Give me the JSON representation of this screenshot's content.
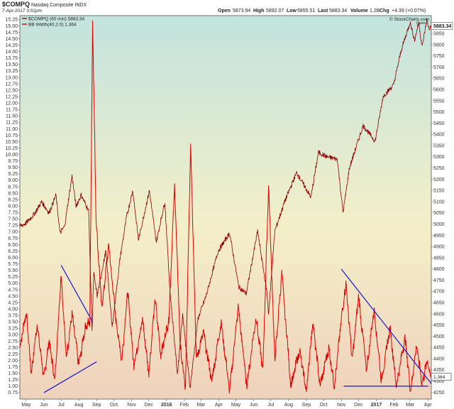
{
  "chart_data": {
    "type": "line",
    "header": {
      "symbol": "$COMPQ",
      "name": "Nasdaq Composite INDX",
      "date": "7-Apr-2017 3:02pm",
      "open_label": "Open",
      "open": "5873.94",
      "high_label": "High",
      "high": "5892.07",
      "low_label": "Low",
      "low": "5855.51",
      "last_label": "Last",
      "last": "5883.34",
      "volume_label": "Volume",
      "volume": "1.2B",
      "chg_label": "Chg",
      "chg": "+4.39 (+0.07%)",
      "watermark": "© StockCharts.com",
      "legend_price": "$COMPQ (60 min) 5883.34",
      "legend_bbw": "BB Width(40,2.0) 1.364",
      "price_tag": "5883.34",
      "bbw_tag": "1.364",
      "open_tag": "Open"
    },
    "colors": {
      "price": "#8b0000",
      "bbw": "#dd0000",
      "trendline": "#1515d0",
      "bg_top": "#c2e3de",
      "bg_mid": "#f4efc8",
      "bg_bottom": "#efd2bc"
    },
    "x_range": [
      "2015-04-20",
      "2017-04-07"
    ],
    "x_ticks": [
      {
        "label": "May",
        "date": "2015-05-01",
        "bold": false
      },
      {
        "label": "Jun",
        "date": "2015-06-01",
        "bold": false
      },
      {
        "label": "Jul",
        "date": "2015-07-01",
        "bold": false
      },
      {
        "label": "Aug",
        "date": "2015-08-01",
        "bold": false
      },
      {
        "label": "Sep",
        "date": "2015-09-01",
        "bold": false
      },
      {
        "label": "Oct",
        "date": "2015-10-01",
        "bold": false
      },
      {
        "label": "Nov",
        "date": "2015-11-01",
        "bold": false
      },
      {
        "label": "Dec",
        "date": "2015-12-01",
        "bold": false
      },
      {
        "label": "2016",
        "date": "2016-01-01",
        "bold": true
      },
      {
        "label": "Feb",
        "date": "2016-02-01",
        "bold": false
      },
      {
        "label": "Mar",
        "date": "2016-03-01",
        "bold": false
      },
      {
        "label": "Apr",
        "date": "2016-04-01",
        "bold": false
      },
      {
        "label": "May",
        "date": "2016-05-01",
        "bold": false
      },
      {
        "label": "Jun",
        "date": "2016-06-01",
        "bold": false
      },
      {
        "label": "Jul",
        "date": "2016-07-01",
        "bold": false
      },
      {
        "label": "Aug",
        "date": "2016-08-01",
        "bold": false
      },
      {
        "label": "Sep",
        "date": "2016-09-01",
        "bold": false
      },
      {
        "label": "Oct",
        "date": "2016-10-01",
        "bold": false
      },
      {
        "label": "Nov",
        "date": "2016-11-01",
        "bold": false
      },
      {
        "label": "Dec",
        "date": "2016-12-01",
        "bold": false
      },
      {
        "label": "2017",
        "date": "2017-01-01",
        "bold": true
      },
      {
        "label": "Feb",
        "date": "2017-02-01",
        "bold": false
      },
      {
        "label": "Mar",
        "date": "2017-03-01",
        "bold": false
      },
      {
        "label": "Apr",
        "date": "2017-04-01",
        "bold": false
      }
    ],
    "y_left": {
      "label": "",
      "range": [
        0.5,
        15.4
      ],
      "ticks": [
        "0.75",
        "1.00",
        "1.25",
        "1.50",
        "1.75",
        "2.00",
        "2.25",
        "2.50",
        "2.75",
        "3.00",
        "3.25",
        "3.50",
        "3.75",
        "4.00",
        "4.25",
        "4.50",
        "4.75",
        "5.00",
        "5.25",
        "5.50",
        "5.75",
        "6.00",
        "6.25",
        "6.50",
        "6.75",
        "7.00",
        "7.25",
        "7.50",
        "7.75",
        "8.00",
        "8.25",
        "8.50",
        "8.75",
        "9.00",
        "9.25",
        "9.50",
        "9.75",
        "10.00",
        "10.25",
        "10.50",
        "10.75",
        "11.00",
        "11.25",
        "11.50",
        "11.75",
        "12.00",
        "12.25",
        "12.50",
        "12.75",
        "13.00",
        "13.25",
        "13.50",
        "13.75",
        "14.00",
        "14.25",
        "14.50",
        "14.75",
        "15.00",
        "15.25"
      ]
    },
    "y_right": {
      "label": "",
      "range": [
        4220,
        5930
      ],
      "ticks": [
        "4250",
        "4300",
        "4350",
        "4400",
        "4450",
        "4500",
        "4550",
        "4600",
        "4650",
        "4700",
        "4750",
        "4800",
        "4850",
        "4900",
        "4950",
        "5000",
        "5050",
        "5100",
        "5150",
        "5200",
        "5250",
        "5300",
        "5350",
        "5400",
        "5450",
        "5500",
        "5550",
        "5600",
        "5650",
        "5700",
        "5750",
        "5800",
        "5850"
      ]
    },
    "series": [
      {
        "name": "$COMPQ (60 min)",
        "axis": "right",
        "points": [
          [
            "2015-04-20",
            4990
          ],
          [
            "2015-05-01",
            5005
          ],
          [
            "2015-05-15",
            5045
          ],
          [
            "2015-05-28",
            5100
          ],
          [
            "2015-06-10",
            5050
          ],
          [
            "2015-06-22",
            5130
          ],
          [
            "2015-06-29",
            4960
          ],
          [
            "2015-07-07",
            4990
          ],
          [
            "2015-07-20",
            5215
          ],
          [
            "2015-07-27",
            5080
          ],
          [
            "2015-08-05",
            5130
          ],
          [
            "2015-08-18",
            5060
          ],
          [
            "2015-08-24",
            4530
          ],
          [
            "2015-08-27",
            4780
          ],
          [
            "2015-09-02",
            4680
          ],
          [
            "2015-09-17",
            4880
          ],
          [
            "2015-09-28",
            4540
          ],
          [
            "2015-10-12",
            4850
          ],
          [
            "2015-10-23",
            5030
          ],
          [
            "2015-11-03",
            5150
          ],
          [
            "2015-11-13",
            4930
          ],
          [
            "2015-12-02",
            5150
          ],
          [
            "2015-12-14",
            4920
          ],
          [
            "2015-12-29",
            5100
          ],
          [
            "2016-01-07",
            4700
          ],
          [
            "2016-01-20",
            4330
          ],
          [
            "2016-01-29",
            4600
          ],
          [
            "2016-02-11",
            4270
          ],
          [
            "2016-02-25",
            4580
          ],
          [
            "2016-03-10",
            4680
          ],
          [
            "2016-03-31",
            4880
          ],
          [
            "2016-04-20",
            4960
          ],
          [
            "2016-05-06",
            4720
          ],
          [
            "2016-05-19",
            4690
          ],
          [
            "2016-06-08",
            4970
          ],
          [
            "2016-06-16",
            4830
          ],
          [
            "2016-06-24",
            4700
          ],
          [
            "2016-06-27",
            4600
          ],
          [
            "2016-07-08",
            4970
          ],
          [
            "2016-07-25",
            5100
          ],
          [
            "2016-08-15",
            5230
          ],
          [
            "2016-09-09",
            5120
          ],
          [
            "2016-09-22",
            5320
          ],
          [
            "2016-10-07",
            5300
          ],
          [
            "2016-10-25",
            5290
          ],
          [
            "2016-11-04",
            5050
          ],
          [
            "2016-11-15",
            5250
          ],
          [
            "2016-12-09",
            5440
          ],
          [
            "2016-12-30",
            5370
          ],
          [
            "2017-01-13",
            5570
          ],
          [
            "2017-01-31",
            5620
          ],
          [
            "2017-02-14",
            5780
          ],
          [
            "2017-03-01",
            5900
          ],
          [
            "2017-03-09",
            5820
          ],
          [
            "2017-03-16",
            5900
          ],
          [
            "2017-03-22",
            5790
          ],
          [
            "2017-03-30",
            5910
          ],
          [
            "2017-04-03",
            5870
          ],
          [
            "2017-04-07",
            5883.34
          ]
        ]
      },
      {
        "name": "BB Width(40,2.0)",
        "axis": "left",
        "points": [
          [
            "2015-04-20",
            2.5
          ],
          [
            "2015-05-01",
            3.9
          ],
          [
            "2015-05-10",
            1.5
          ],
          [
            "2015-05-20",
            3.4
          ],
          [
            "2015-06-01",
            1.3
          ],
          [
            "2015-06-10",
            2.8
          ],
          [
            "2015-06-20",
            1.2
          ],
          [
            "2015-07-01",
            5.4
          ],
          [
            "2015-07-10",
            2.1
          ],
          [
            "2015-07-20",
            3.8
          ],
          [
            "2015-08-01",
            1.8
          ],
          [
            "2015-08-12",
            3.3
          ],
          [
            "2015-08-20",
            3.5
          ],
          [
            "2015-08-25",
            15.2
          ],
          [
            "2015-08-31",
            7.5
          ],
          [
            "2015-09-10",
            4.0
          ],
          [
            "2015-09-22",
            6.5
          ],
          [
            "2015-10-05",
            3.5
          ],
          [
            "2015-10-15",
            2.0
          ],
          [
            "2015-10-25",
            4.7
          ],
          [
            "2015-11-05",
            1.8
          ],
          [
            "2015-11-20",
            3.6
          ],
          [
            "2015-12-01",
            1.5
          ],
          [
            "2015-12-12",
            4.4
          ],
          [
            "2015-12-22",
            2.2
          ],
          [
            "2016-01-05",
            3.6
          ],
          [
            "2016-01-15",
            8.8
          ],
          [
            "2016-01-25",
            2.5
          ],
          [
            "2016-02-03",
            0.9
          ],
          [
            "2016-02-12",
            10.5
          ],
          [
            "2016-02-22",
            2.0
          ],
          [
            "2016-03-05",
            3.1
          ],
          [
            "2016-03-20",
            1.2
          ],
          [
            "2016-04-05",
            3.5
          ],
          [
            "2016-04-20",
            0.8
          ],
          [
            "2016-05-05",
            4.1
          ],
          [
            "2016-05-20",
            1.0
          ],
          [
            "2016-06-05",
            3.7
          ],
          [
            "2016-06-17",
            1.6
          ],
          [
            "2016-06-27",
            8.8
          ],
          [
            "2016-07-08",
            2.0
          ],
          [
            "2016-07-20",
            5.4
          ],
          [
            "2016-08-05",
            1.0
          ],
          [
            "2016-08-20",
            2.4
          ],
          [
            "2016-09-01",
            0.8
          ],
          [
            "2016-09-12",
            3.5
          ],
          [
            "2016-09-25",
            1.0
          ],
          [
            "2016-10-10",
            2.5
          ],
          [
            "2016-10-20",
            1.0
          ],
          [
            "2016-11-01",
            3.6
          ],
          [
            "2016-11-09",
            5.0
          ],
          [
            "2016-11-20",
            2.0
          ],
          [
            "2016-12-01",
            4.5
          ],
          [
            "2016-12-15",
            1.6
          ],
          [
            "2016-12-28",
            4.0
          ],
          [
            "2017-01-10",
            1.2
          ],
          [
            "2017-01-25",
            3.3
          ],
          [
            "2017-02-05",
            1.0
          ],
          [
            "2017-02-20",
            2.9
          ],
          [
            "2017-03-02",
            0.8
          ],
          [
            "2017-03-12",
            2.6
          ],
          [
            "2017-03-22",
            1.1
          ],
          [
            "2017-03-31",
            2.0
          ],
          [
            "2017-04-07",
            1.364
          ]
        ]
      }
    ],
    "trendlines": [
      {
        "axis": "left",
        "from": [
          "2015-07-01",
          5.7
        ],
        "to": [
          "2015-08-25",
          3.5
        ]
      },
      {
        "axis": "left",
        "from": [
          "2015-06-01",
          0.75
        ],
        "to": [
          "2015-09-01",
          1.95
        ]
      },
      {
        "axis": "left",
        "from": [
          "2016-11-01",
          5.55
        ],
        "to": [
          "2017-04-07",
          1.1
        ]
      },
      {
        "axis": "left",
        "from": [
          "2016-11-05",
          1.0
        ],
        "to": [
          "2017-04-02",
          1.0
        ]
      }
    ],
    "grid": false,
    "legend_placement": "top-left"
  }
}
